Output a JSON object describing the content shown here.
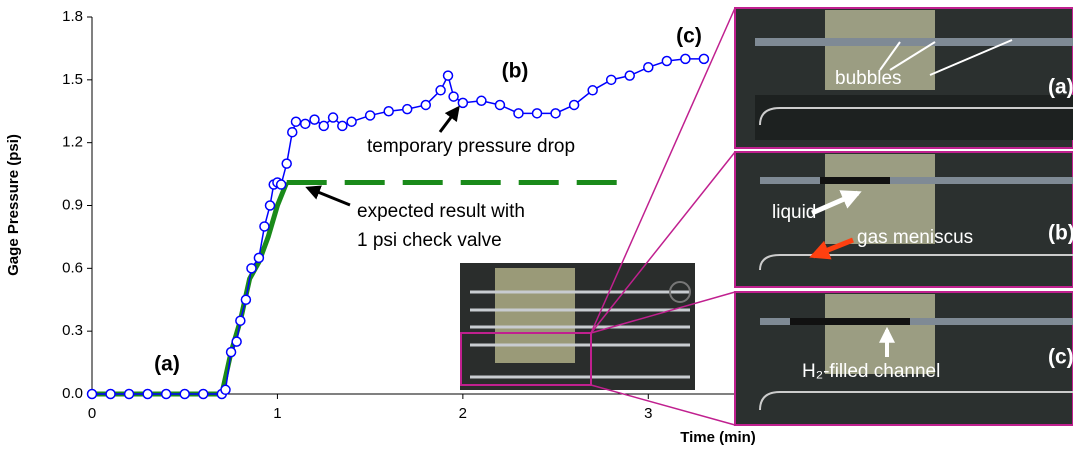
{
  "chart_data": {
    "type": "line",
    "ylabel": "Gage Pressure (psi)",
    "xlabel": "Time (min)",
    "xlim": [
      0,
      3.5
    ],
    "ylim": [
      0,
      1.8
    ],
    "xticks": [
      0,
      1,
      2,
      3
    ],
    "yticks": [
      {
        "value": 0,
        "label": "0.0"
      },
      0.3,
      0.6,
      0.9,
      1.2,
      1.5,
      1.8
    ],
    "series": [
      {
        "color": "#0000ff",
        "marker": "circle",
        "style": "solid",
        "x": [
          0,
          0.1,
          0.2,
          0.3,
          0.4,
          0.5,
          0.6,
          0.7,
          0.72,
          0.75,
          0.78,
          0.8,
          0.83,
          0.86,
          0.9,
          0.93,
          0.96,
          0.98,
          1.0,
          1.02,
          1.05,
          1.08,
          1.1,
          1.15,
          1.2,
          1.25,
          1.3,
          1.35,
          1.4,
          1.5,
          1.6,
          1.7,
          1.8,
          1.88,
          1.92,
          1.95,
          2.0,
          2.1,
          2.2,
          2.3,
          2.4,
          2.5,
          2.6,
          2.7,
          2.8,
          2.9,
          3.0,
          3.1,
          3.2,
          3.3
        ],
        "values": [
          0,
          0,
          0,
          0,
          0,
          0,
          0,
          0,
          0.02,
          0.2,
          0.25,
          0.35,
          0.45,
          0.6,
          0.65,
          0.8,
          0.9,
          1.0,
          1.01,
          1.0,
          1.1,
          1.25,
          1.3,
          1.29,
          1.31,
          1.28,
          1.32,
          1.28,
          1.3,
          1.33,
          1.35,
          1.36,
          1.38,
          1.45,
          1.52,
          1.42,
          1.39,
          1.4,
          1.38,
          1.34,
          1.34,
          1.34,
          1.38,
          1.45,
          1.5,
          1.52,
          1.56,
          1.59,
          1.6,
          1.6
        ]
      },
      {
        "color": "#1a8a1a",
        "marker": "none",
        "style": "solid",
        "x": [
          0,
          0.7,
          0.75,
          0.8,
          0.85,
          0.9,
          0.95,
          1.0,
          1.05
        ],
        "values": [
          0,
          0,
          0.2,
          0.35,
          0.55,
          0.63,
          0.75,
          0.9,
          1.01
        ]
      },
      {
        "color": "#1a8a1a",
        "marker": "none",
        "style": "dashed",
        "x": [
          1.05,
          2.9
        ],
        "values": [
          1.01,
          1.01
        ]
      }
    ],
    "annotations": {
      "a": "(a)",
      "b": "(b)",
      "c": "(c)",
      "drop": "temporary pressure drop",
      "expected": [
        "expected result with",
        "1 psi check valve"
      ]
    }
  },
  "insets": {
    "a": {
      "label": "(a)",
      "text": "bubbles"
    },
    "b": {
      "label": "(b)",
      "liquid": "liquid",
      "gas": "gas meniscus"
    },
    "c": {
      "label": "(c)",
      "text": "H₂-filled channel"
    }
  }
}
